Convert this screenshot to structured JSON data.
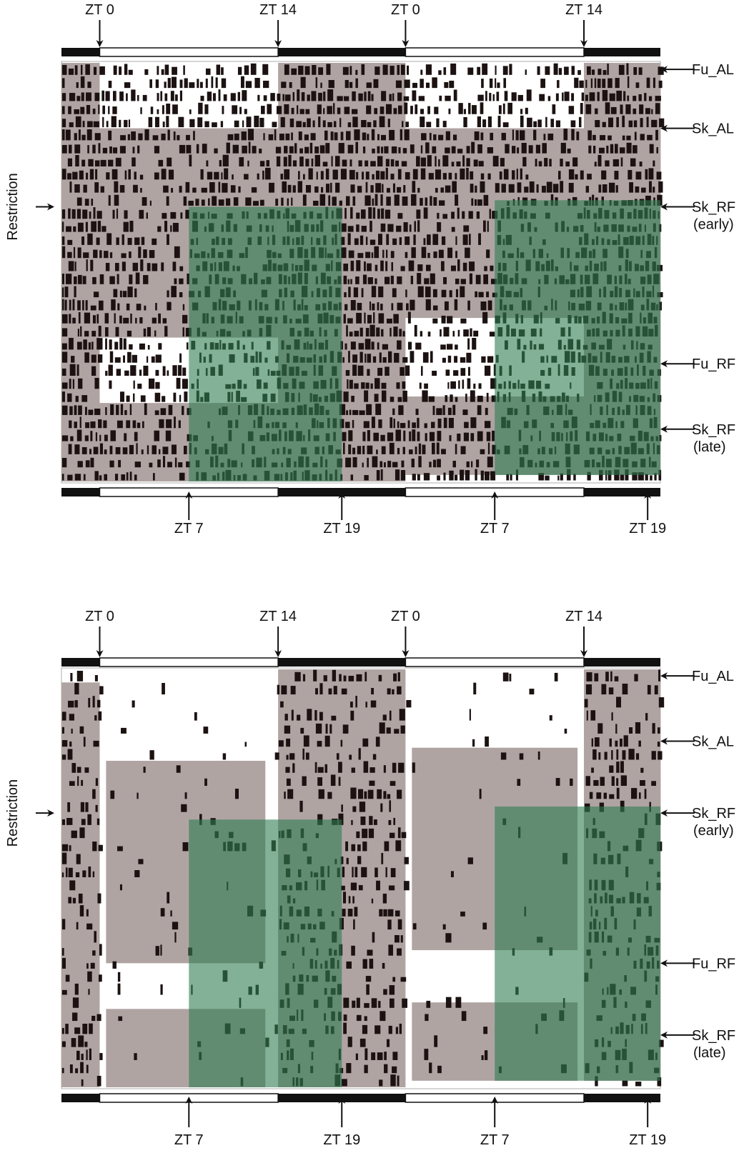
{
  "chart_data": [
    {
      "type": "actogram",
      "panel": "top",
      "top_labels": [
        "ZT 0",
        "ZT 14",
        "ZT 0",
        "ZT 14"
      ],
      "top_zt_hours": [
        0,
        14,
        24,
        38
      ],
      "bottom_labels": [
        "ZT 7",
        "ZT 19",
        "ZT 7",
        "ZT 19"
      ],
      "bottom_zt_hours": [
        7,
        19,
        31,
        43
      ],
      "right_labels": [
        "Fu_AL",
        "Sk_AL",
        "Sk_RF\n(early)",
        "Fu_RF",
        "Sk_RF\n(late)"
      ],
      "right_label_days": [
        0.5,
        5,
        11,
        23,
        28
      ],
      "left_label": "Restriction",
      "left_label_day": 11,
      "light_dark_bar": [
        {
          "from_zt": -3,
          "to_zt": 0,
          "phase": "dark"
        },
        {
          "from_zt": 0,
          "to_zt": 14,
          "phase": "light"
        },
        {
          "from_zt": 14,
          "to_zt": 24,
          "phase": "dark"
        },
        {
          "from_zt": 24,
          "to_zt": 38,
          "phase": "light"
        },
        {
          "from_zt": 38,
          "to_zt": 44,
          "phase": "dark"
        }
      ],
      "x_range_zt": [
        -3,
        44
      ],
      "total_days": 32,
      "activity_density": 0.85,
      "gray_regions": [
        {
          "from_zt": -3,
          "to_zt": 0,
          "from_day": 0,
          "to_day": 32
        },
        {
          "from_zt": 0,
          "to_zt": 14,
          "from_day": 5,
          "to_day": 21
        },
        {
          "from_zt": 0,
          "to_zt": 14,
          "from_day": 26,
          "to_day": 32
        },
        {
          "from_zt": 14,
          "to_zt": 24,
          "from_day": 0,
          "to_day": 32
        },
        {
          "from_zt": 24,
          "to_zt": 38,
          "from_day": 5,
          "to_day": 19.5
        },
        {
          "from_zt": 24,
          "to_zt": 38,
          "from_day": 25.5,
          "to_day": 31.5
        },
        {
          "from_zt": 38,
          "to_zt": 44,
          "from_day": 0,
          "to_day": 31.5
        }
      ],
      "green_regions": [
        {
          "from_zt": 7,
          "to_zt": 19,
          "from_day": 11,
          "to_day": 32
        },
        {
          "from_zt": 31,
          "to_zt": 44,
          "from_day": 10.5,
          "to_day": 31.5
        }
      ],
      "colors": {
        "green": "#2e7d52",
        "gray": "#b0a4a3",
        "activity": "#1c1212",
        "bar_dark": "#111111"
      }
    },
    {
      "type": "actogram",
      "panel": "bottom",
      "top_labels": [
        "ZT 0",
        "ZT 14",
        "ZT 0",
        "ZT 14"
      ],
      "top_zt_hours": [
        0,
        14,
        24,
        38
      ],
      "bottom_labels": [
        "ZT 7",
        "ZT 19",
        "ZT 7",
        "ZT 19"
      ],
      "bottom_zt_hours": [
        7,
        19,
        31,
        43
      ],
      "right_labels": [
        "Fu_AL",
        "Sk_AL",
        "Sk_RF\n(early)",
        "Fu_RF",
        "Sk_RF\n(late)"
      ],
      "right_label_days": [
        0.5,
        5.5,
        11,
        22.5,
        28
      ],
      "left_label": "Restriction",
      "left_label_day": 11,
      "light_dark_bar": [
        {
          "from_zt": -3,
          "to_zt": 0,
          "phase": "dark"
        },
        {
          "from_zt": 0,
          "to_zt": 14,
          "phase": "light"
        },
        {
          "from_zt": 14,
          "to_zt": 24,
          "phase": "dark"
        },
        {
          "from_zt": 24,
          "to_zt": 38,
          "phase": "light"
        },
        {
          "from_zt": 38,
          "to_zt": 44,
          "phase": "dark"
        }
      ],
      "x_range_zt": [
        -3,
        44
      ],
      "total_days": 32,
      "activity_density": 0.4,
      "gray_regions": [
        {
          "from_zt": -3,
          "to_zt": 0,
          "from_day": 1,
          "to_day": 32
        },
        {
          "from_zt": 0.5,
          "to_zt": 13,
          "from_day": 7,
          "to_day": 22.5
        },
        {
          "from_zt": 0.5,
          "to_zt": 13,
          "from_day": 26,
          "to_day": 32
        },
        {
          "from_zt": 14,
          "to_zt": 24,
          "from_day": 0,
          "to_day": 32
        },
        {
          "from_zt": 24.5,
          "to_zt": 37.5,
          "from_day": 6,
          "to_day": 21.5
        },
        {
          "from_zt": 24.5,
          "to_zt": 37.5,
          "from_day": 25.5,
          "to_day": 31.5
        },
        {
          "from_zt": 38,
          "to_zt": 44,
          "from_day": 0,
          "to_day": 31.5
        }
      ],
      "green_regions": [
        {
          "from_zt": 7,
          "to_zt": 19,
          "from_day": 11.5,
          "to_day": 32
        },
        {
          "from_zt": 31,
          "to_zt": 44,
          "from_day": 10.5,
          "to_day": 31.5
        }
      ],
      "colors": {
        "green": "#2e7d52",
        "gray": "#b0a4a3",
        "activity": "#1c1212",
        "bar_dark": "#111111"
      }
    }
  ]
}
